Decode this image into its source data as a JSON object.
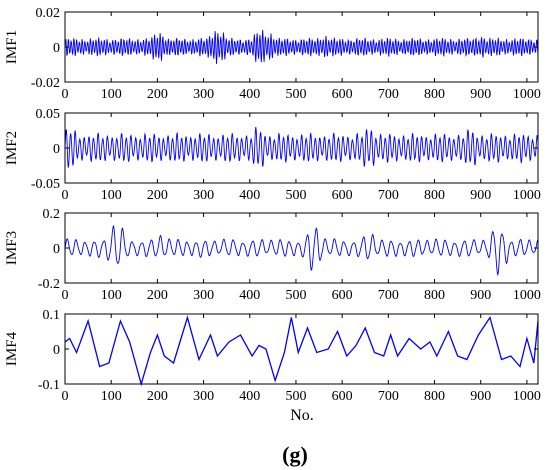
{
  "figure_label": "(g)",
  "xlabel": "No.",
  "colors": {
    "line": "#0000ff",
    "axis": "#000000"
  },
  "chart_data": [
    {
      "type": "line",
      "ylabel": "IMF1",
      "xlim": [
        0,
        1024
      ],
      "ylim": [
        -0.02,
        0.02
      ],
      "xticks": [
        "0",
        "100",
        "200",
        "300",
        "400",
        "500",
        "600",
        "700",
        "800",
        "900",
        "1000"
      ],
      "yticks": [
        "0.02",
        "0",
        "-0.02"
      ],
      "ytick_values": [
        0.02,
        0,
        -0.02
      ],
      "signal": {
        "amplitude": 0.005,
        "period": 6,
        "bursts": [
          [
            205,
            0.009
          ],
          [
            330,
            0.011
          ],
          [
            425,
            0.01
          ],
          [
            440,
            0.009
          ],
          [
            560,
            0.007
          ],
          [
            900,
            0.007
          ]
        ]
      }
    },
    {
      "type": "line",
      "ylabel": "IMF2",
      "xlim": [
        0,
        1024
      ],
      "ylim": [
        -0.05,
        0.05
      ],
      "xticks": [
        "0",
        "100",
        "200",
        "300",
        "400",
        "500",
        "600",
        "700",
        "800",
        "900",
        "1000"
      ],
      "yticks": [
        "0.05",
        "0",
        "-0.05"
      ],
      "ytick_values": [
        0.05,
        0,
        -0.05
      ],
      "signal": {
        "amplitude": 0.02,
        "period": 10,
        "bursts": [
          [
            10,
            0.03
          ],
          [
            420,
            0.03
          ],
          [
            660,
            0.032
          ],
          [
            880,
            0.028
          ]
        ]
      }
    },
    {
      "type": "line",
      "ylabel": "IMF3",
      "xlim": [
        0,
        1024
      ],
      "ylim": [
        -0.2,
        0.2
      ],
      "xticks": [
        "0",
        "100",
        "200",
        "300",
        "400",
        "500",
        "600",
        "700",
        "800",
        "900",
        "1000"
      ],
      "yticks": [
        "0.2",
        "0",
        "-0.2"
      ],
      "ytick_values": [
        0.2,
        0,
        -0.2
      ],
      "signal": {
        "amplitude": 0.05,
        "period": 20,
        "bursts": [
          [
            110,
            0.15
          ],
          [
            210,
            0.08
          ],
          [
            540,
            0.14
          ],
          [
            660,
            0.09
          ],
          [
            940,
            0.15
          ]
        ]
      }
    },
    {
      "type": "line",
      "ylabel": "IMF4",
      "xlim": [
        0,
        1024
      ],
      "ylim": [
        -0.1,
        0.1
      ],
      "xticks": [
        "0",
        "100",
        "200",
        "300",
        "400",
        "500",
        "600",
        "700",
        "800",
        "900",
        "1000"
      ],
      "yticks": [
        "0.1",
        "0",
        "-0.1"
      ],
      "ytick_values": [
        0.1,
        0,
        -0.1
      ],
      "points": [
        [
          0,
          0.02
        ],
        [
          10,
          0.03
        ],
        [
          25,
          -0.01
        ],
        [
          50,
          0.08
        ],
        [
          75,
          -0.05
        ],
        [
          95,
          -0.04
        ],
        [
          120,
          0.08
        ],
        [
          140,
          0.02
        ],
        [
          165,
          -0.1
        ],
        [
          185,
          -0.01
        ],
        [
          200,
          0.04
        ],
        [
          215,
          -0.02
        ],
        [
          235,
          -0.04
        ],
        [
          265,
          0.09
        ],
        [
          290,
          -0.03
        ],
        [
          315,
          0.04
        ],
        [
          330,
          -0.02
        ],
        [
          355,
          0.02
        ],
        [
          380,
          0.04
        ],
        [
          405,
          -0.02
        ],
        [
          420,
          0.01
        ],
        [
          435,
          0.0
        ],
        [
          455,
          -0.09
        ],
        [
          475,
          -0.01
        ],
        [
          490,
          0.09
        ],
        [
          505,
          -0.01
        ],
        [
          525,
          0.06
        ],
        [
          545,
          -0.01
        ],
        [
          570,
          0.0
        ],
        [
          590,
          0.05
        ],
        [
          610,
          -0.02
        ],
        [
          630,
          0.01
        ],
        [
          650,
          0.06
        ],
        [
          670,
          -0.01
        ],
        [
          690,
          -0.02
        ],
        [
          705,
          0.04
        ],
        [
          720,
          -0.02
        ],
        [
          745,
          0.03
        ],
        [
          770,
          0.0
        ],
        [
          790,
          0.02
        ],
        [
          805,
          -0.02
        ],
        [
          830,
          0.05
        ],
        [
          850,
          -0.02
        ],
        [
          870,
          -0.03
        ],
        [
          895,
          0.04
        ],
        [
          920,
          0.09
        ],
        [
          945,
          -0.03
        ],
        [
          965,
          -0.02
        ],
        [
          985,
          -0.05
        ],
        [
          1000,
          0.03
        ],
        [
          1015,
          -0.04
        ],
        [
          1024,
          0.08
        ]
      ]
    }
  ]
}
